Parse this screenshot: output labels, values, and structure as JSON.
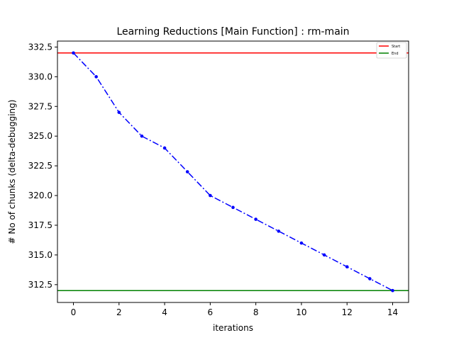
{
  "chart_data": {
    "type": "line",
    "title": "Learning Reductions [Main Function] : rm-main",
    "xlabel": "iterations",
    "ylabel": "# No of chunks (delta-debugging)",
    "xlim": [
      -0.7,
      14.7
    ],
    "ylim": [
      311.0,
      333.0
    ],
    "xticks": [
      0,
      2,
      4,
      6,
      8,
      10,
      12,
      14
    ],
    "yticks": [
      312.5,
      315.0,
      317.5,
      320.0,
      322.5,
      325.0,
      327.5,
      330.0,
      332.5
    ],
    "grid": false,
    "legend_position": "top-right",
    "series": [
      {
        "x": [
          0,
          1,
          2,
          3,
          4,
          5,
          6,
          7,
          8,
          9,
          10,
          11,
          12,
          13,
          14
        ],
        "values": [
          332,
          330,
          327,
          325,
          324,
          322,
          320,
          319,
          318,
          317,
          316,
          315,
          314,
          313,
          312
        ],
        "color": "#0000ff",
        "style": "dash-dot",
        "marker": "dot"
      }
    ],
    "reference_lines": [
      {
        "name": "Start",
        "y": 332,
        "color": "#ff0000"
      },
      {
        "name": "End",
        "y": 312,
        "color": "#008000"
      }
    ]
  }
}
